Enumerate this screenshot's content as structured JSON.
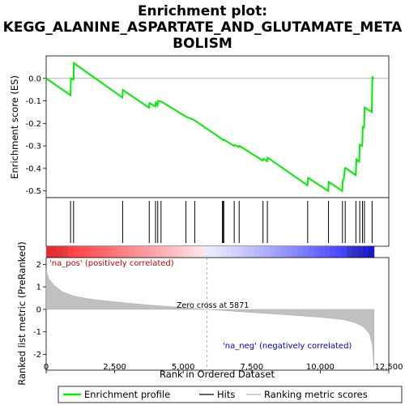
{
  "chart_data": {
    "type": "line",
    "title_lines": [
      "Enrichment plot:",
      "KEGG_ALANINE_ASPARTATE_AND_GLUTAMATE_META",
      "BOLISM"
    ],
    "top_panel": {
      "ylabel": "Enrichment score (ES)",
      "ylim": [
        -0.53,
        0.1
      ],
      "yticks": [
        "0.0",
        "-0.1",
        "-0.2",
        "-0.3",
        "-0.4",
        "-0.5"
      ],
      "ytick_values": [
        0.0,
        -0.1,
        -0.2,
        -0.3,
        -0.4,
        -0.5
      ],
      "series_name": "Enrichment profile",
      "color": "#00ee00",
      "points": [
        [
          0,
          0.0
        ],
        [
          890,
          -0.075
        ],
        [
          900,
          0.0
        ],
        [
          1000,
          -0.005
        ],
        [
          1010,
          0.068
        ],
        [
          2780,
          -0.085
        ],
        [
          2800,
          -0.052
        ],
        [
          3750,
          -0.13
        ],
        [
          3770,
          -0.11
        ],
        [
          3980,
          -0.125
        ],
        [
          4000,
          -0.108
        ],
        [
          4060,
          -0.12
        ],
        [
          4080,
          -0.1
        ],
        [
          4180,
          -0.102
        ],
        [
          5100,
          -0.17
        ],
        [
          5400,
          -0.185
        ],
        [
          6420,
          -0.27
        ],
        [
          6460,
          -0.275
        ],
        [
          6480,
          -0.272
        ],
        [
          6850,
          -0.3
        ],
        [
          6870,
          -0.297
        ],
        [
          6950,
          -0.3
        ],
        [
          7020,
          -0.305
        ],
        [
          7050,
          -0.3
        ],
        [
          7900,
          -0.365
        ],
        [
          7930,
          -0.358
        ],
        [
          8060,
          -0.368
        ],
        [
          8080,
          -0.352
        ],
        [
          9530,
          -0.475
        ],
        [
          9560,
          -0.442
        ],
        [
          10290,
          -0.5
        ],
        [
          10310,
          -0.46
        ],
        [
          10800,
          -0.5
        ],
        [
          10820,
          -0.455
        ],
        [
          10860,
          -0.445
        ],
        [
          10900,
          -0.4
        ],
        [
          10920,
          -0.398
        ],
        [
          11290,
          -0.43
        ],
        [
          11320,
          -0.36
        ],
        [
          11420,
          -0.37
        ],
        [
          11440,
          -0.295
        ],
        [
          11530,
          -0.3
        ],
        [
          11550,
          -0.215
        ],
        [
          11600,
          -0.218
        ],
        [
          11620,
          -0.13
        ],
        [
          11880,
          -0.15
        ],
        [
          11900,
          0.005
        ],
        [
          11960,
          0.0
        ]
      ]
    },
    "hits_positions": [
      890,
      1000,
      2790,
      3760,
      3990,
      4070,
      4190,
      5100,
      5420,
      6430,
      6460,
      6480,
      6860,
      7040,
      7910,
      8070,
      9540,
      10300,
      10810,
      10910,
      11300,
      11440,
      11540,
      11610,
      11890
    ],
    "bottom_panel": {
      "ylabel": "Ranked list metric (PreRanked)",
      "xlabel": "Rank in Ordered Dataset",
      "yticks": [
        "2",
        "1",
        "0",
        "-1",
        "-2"
      ],
      "ytick_values": [
        2,
        1,
        0,
        -1,
        -2
      ],
      "ylim": [
        -2.7,
        2.3
      ],
      "xlim": [
        0,
        12000
      ],
      "xticks": [
        "0",
        "2,500",
        "5,000",
        "7,500",
        "10,000",
        "12,500"
      ],
      "xtick_values": [
        0,
        2500,
        5000,
        7500,
        10000,
        12500
      ],
      "zero_cross_label": "Zero cross at 5871",
      "zero_cross": 5871,
      "pos_label": "'na_pos' (positively correlated)",
      "neg_label": "'na_neg' (negatively correlated)",
      "metric_profile": [
        [
          0,
          1.75
        ],
        [
          100,
          1.35
        ],
        [
          300,
          1.05
        ],
        [
          600,
          0.78
        ],
        [
          1000,
          0.6
        ],
        [
          1500,
          0.48
        ],
        [
          2000,
          0.4
        ],
        [
          3000,
          0.28
        ],
        [
          4000,
          0.17
        ],
        [
          5000,
          0.08
        ],
        [
          5871,
          0.0
        ],
        [
          7000,
          -0.1
        ],
        [
          8000,
          -0.18
        ],
        [
          9000,
          -0.26
        ],
        [
          10000,
          -0.35
        ],
        [
          10800,
          -0.45
        ],
        [
          11300,
          -0.6
        ],
        [
          11600,
          -0.8
        ],
        [
          11800,
          -1.1
        ],
        [
          11900,
          -1.6
        ],
        [
          11960,
          -2.55
        ]
      ]
    },
    "legend": {
      "items": [
        "Enrichment profile",
        "Hits",
        "Ranking metric scores"
      ]
    },
    "colors": {
      "profile": "#00ee00",
      "hits": "#000000",
      "metric_fill": "#c0c0c0",
      "pos_red": "#ff0000",
      "neg_blue": "#0000ff"
    }
  }
}
